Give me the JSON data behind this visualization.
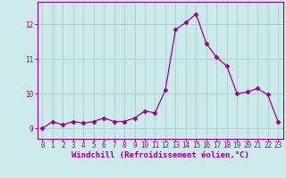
{
  "x": [
    0,
    1,
    2,
    3,
    4,
    5,
    6,
    7,
    8,
    9,
    10,
    11,
    12,
    13,
    14,
    15,
    16,
    17,
    18,
    19,
    20,
    21,
    22,
    23
  ],
  "y": [
    9.0,
    9.2,
    9.1,
    9.2,
    9.15,
    9.2,
    9.3,
    9.2,
    9.2,
    9.3,
    9.5,
    9.45,
    10.1,
    11.85,
    12.05,
    12.3,
    11.45,
    11.05,
    10.8,
    10.0,
    10.05,
    10.15,
    9.97,
    9.2
  ],
  "line_color": "#990099",
  "marker": "D",
  "marker_size": 2.5,
  "bg_color": "#cceaea",
  "grid_color": "#aacccc",
  "xlabel": "Windchill (Refroidissement éolien,°C)",
  "ylabel": "",
  "title": "",
  "xlim": [
    -0.5,
    23.5
  ],
  "ylim": [
    8.7,
    12.65
  ],
  "yticks": [
    9,
    10,
    11,
    12
  ],
  "xticks": [
    0,
    1,
    2,
    3,
    4,
    5,
    6,
    7,
    8,
    9,
    10,
    11,
    12,
    13,
    14,
    15,
    16,
    17,
    18,
    19,
    20,
    21,
    22,
    23
  ],
  "label_fontsize": 6.5,
  "tick_fontsize": 5.5,
  "label_color": "#990099",
  "tick_color": "#990099",
  "spine_color": "#990099"
}
